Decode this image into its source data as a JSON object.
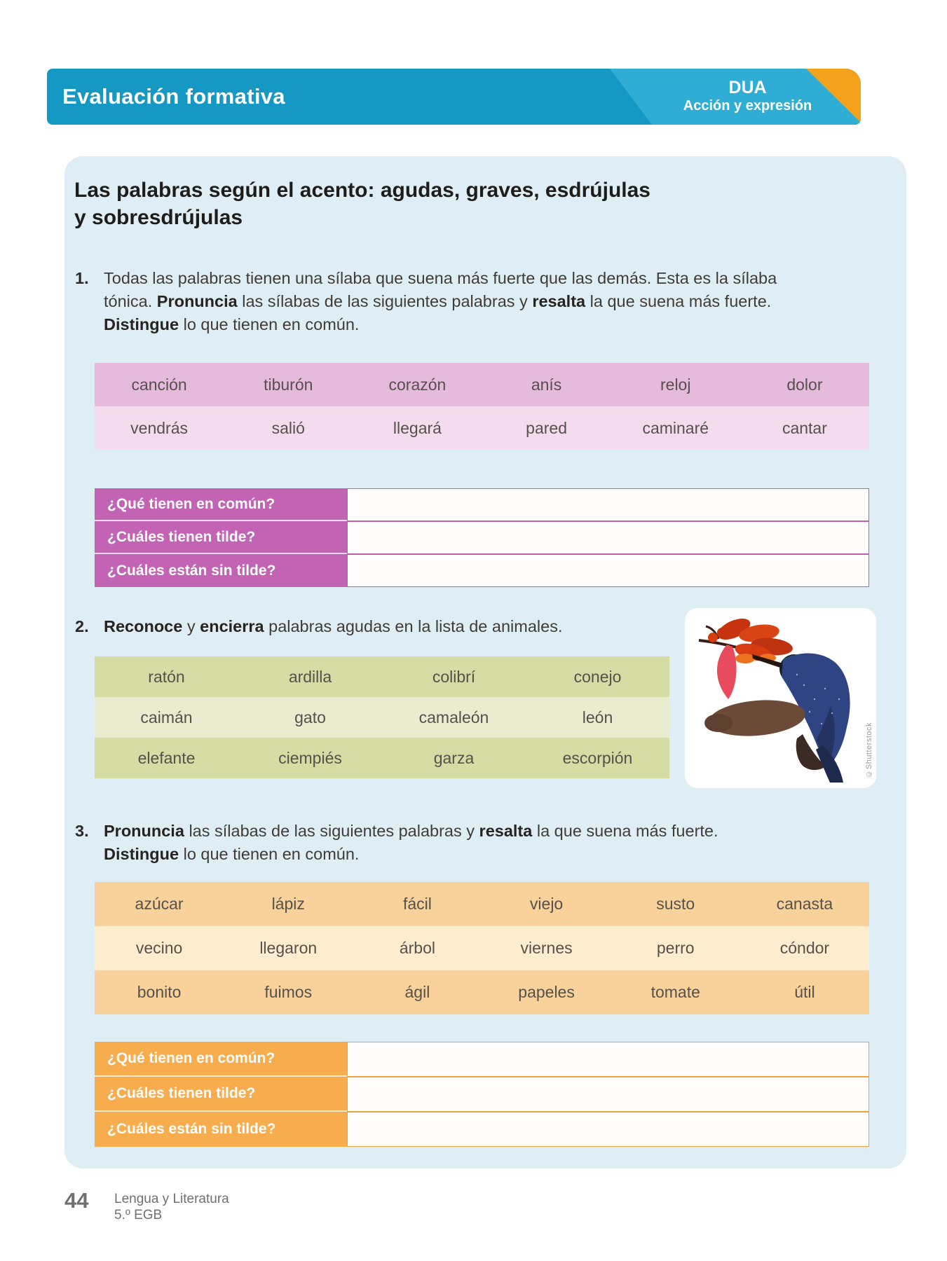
{
  "header": {
    "title": "Evaluación formativa",
    "badge_line1": "DUA",
    "badge_line2": "Acción y expresión"
  },
  "lesson": {
    "title_line1": "Las palabras según el acento: agudas, graves, esdrújulas",
    "title_line2": "y sobresdrújulas"
  },
  "exercise1": {
    "number": "1.",
    "lines": [
      [
        {
          "t": "Todas las palabras tienen una sílaba que suena más fuerte que las demás. Esta es la sílaba"
        }
      ],
      [
        {
          "t": "tónica. "
        },
        {
          "t": "Pronuncia",
          "b": true
        },
        {
          "t": " las sílabas de las siguientes palabras y "
        },
        {
          "t": "resalta",
          "b": true
        },
        {
          "t": " la que suena más fuerte."
        }
      ],
      [
        {
          "t": "Distingue",
          "b": true
        },
        {
          "t": " lo que tienen en común."
        }
      ]
    ]
  },
  "exercise2": {
    "number": "2.",
    "lines": [
      [
        {
          "t": "Reconoce",
          "b": true
        },
        {
          "t": " y "
        },
        {
          "t": "encierra",
          "b": true
        },
        {
          "t": " palabras agudas en la lista de animales."
        }
      ]
    ]
  },
  "exercise3": {
    "number": "3.",
    "lines": [
      [
        {
          "t": "Pronuncia",
          "b": true
        },
        {
          "t": " las sílabas de las siguientes palabras y "
        },
        {
          "t": "resalta",
          "b": true
        },
        {
          "t": " la que suena más fuerte."
        }
      ],
      [
        {
          "t": "Distingue",
          "b": true
        },
        {
          "t": " lo que tienen en común."
        }
      ]
    ]
  },
  "word_table_1": {
    "rows": [
      [
        "canción",
        "tiburón",
        "corazón",
        "anís",
        "reloj",
        "dolor"
      ],
      [
        "vendrás",
        "salió",
        "llegará",
        "pared",
        "caminaré",
        "cantar"
      ]
    ]
  },
  "questions": {
    "q1": "¿Qué tienen en común?",
    "q2": "¿Cuáles tienen tilde?",
    "q3": "¿Cuáles están sin tilde?"
  },
  "animal_table": {
    "rows": [
      [
        "ratón",
        "ardilla",
        "colibrí",
        "conejo"
      ],
      [
        "caimán",
        "gato",
        "camaleón",
        "león"
      ],
      [
        "elefante",
        "ciempiés",
        "garza",
        "escorpión"
      ]
    ]
  },
  "word_table_3": {
    "rows": [
      [
        "azúcar",
        "lápiz",
        "fácil",
        "viejo",
        "susto",
        "canasta"
      ],
      [
        "vecino",
        "llegaron",
        "árbol",
        "viernes",
        "perro",
        "cóndor"
      ],
      [
        "bonito",
        "fuimos",
        "ágil",
        "papeles",
        "tomate",
        "útil"
      ]
    ]
  },
  "image": {
    "credit": "©Shutterstock"
  },
  "footer": {
    "page_number": "44",
    "line1": "Lengua y Literatura",
    "line2": "5.º EGB"
  },
  "colors": {
    "banner_blue": "#1598c4",
    "banner_blue_light": "#2fadd4",
    "corner_orange": "#f4a21c",
    "panel_bg": "#dfeef4",
    "pink_row_dark": "#e6badd",
    "pink_row_light": "#f4dcee",
    "purple_header": "#c263b3",
    "green_row_dark": "#d5dca4",
    "green_row_light": "#e9ecce",
    "orange_row_dark": "#f8d29a",
    "orange_row_light": "#fdeccd",
    "orange_header": "#f7ad4e"
  }
}
